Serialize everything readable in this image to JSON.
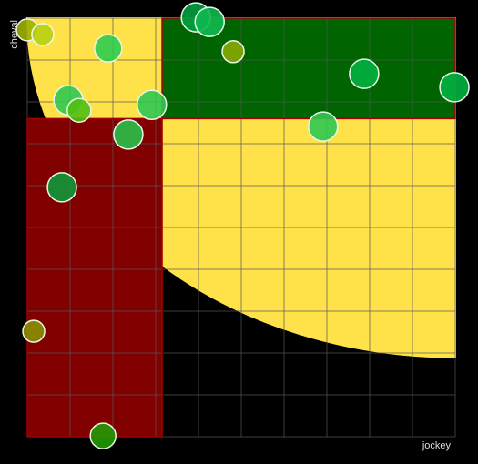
{
  "chart_data": {
    "type": "scatter",
    "x_label": "jockey",
    "y_label": "cheval",
    "xlim": [
      0,
      10
    ],
    "ylim": [
      0,
      10
    ],
    "grid": {
      "divisions": 10,
      "color": "#555555"
    },
    "background": "#000000",
    "curve": {
      "color": "#ffe14a",
      "center": [
        10,
        10
      ],
      "radii": [
        10,
        8.1
      ]
    },
    "regions": [
      {
        "color": "#800000",
        "x": [
          0,
          3.15
        ],
        "y": [
          0,
          7.6
        ]
      },
      {
        "color": "#006400",
        "x": [
          3.15,
          10
        ],
        "y": [
          7.6,
          10
        ]
      }
    ],
    "series": [
      {
        "x": [
          0,
          0.36,
          1.89,
          3.94,
          4.26,
          4.81,
          7.87,
          9.98,
          0.96,
          1.21,
          2.91,
          2.36,
          6.91,
          0.81,
          0.15,
          1.77
        ],
        "values": [
          9.72,
          9.61,
          9.28,
          10.02,
          9.91,
          9.2,
          8.67,
          8.35,
          8.04,
          7.8,
          7.93,
          7.22,
          7.41,
          5.96,
          2.52,
          0.02
        ],
        "sizes": [
          12,
          12,
          15,
          16,
          16,
          12,
          16,
          16,
          16,
          13,
          16,
          16,
          16,
          16,
          12,
          14
        ],
        "colors": [
          "#a0b000",
          "#b8d010",
          "#2ecc50",
          "#00a040",
          "#10b850",
          "#88a800",
          "#00b040",
          "#00b040",
          "#30c850",
          "#50c010",
          "#30c850",
          "#28c048",
          "#30c850",
          "#109838",
          "#8a9000",
          "#229a00"
        ]
      }
    ]
  }
}
